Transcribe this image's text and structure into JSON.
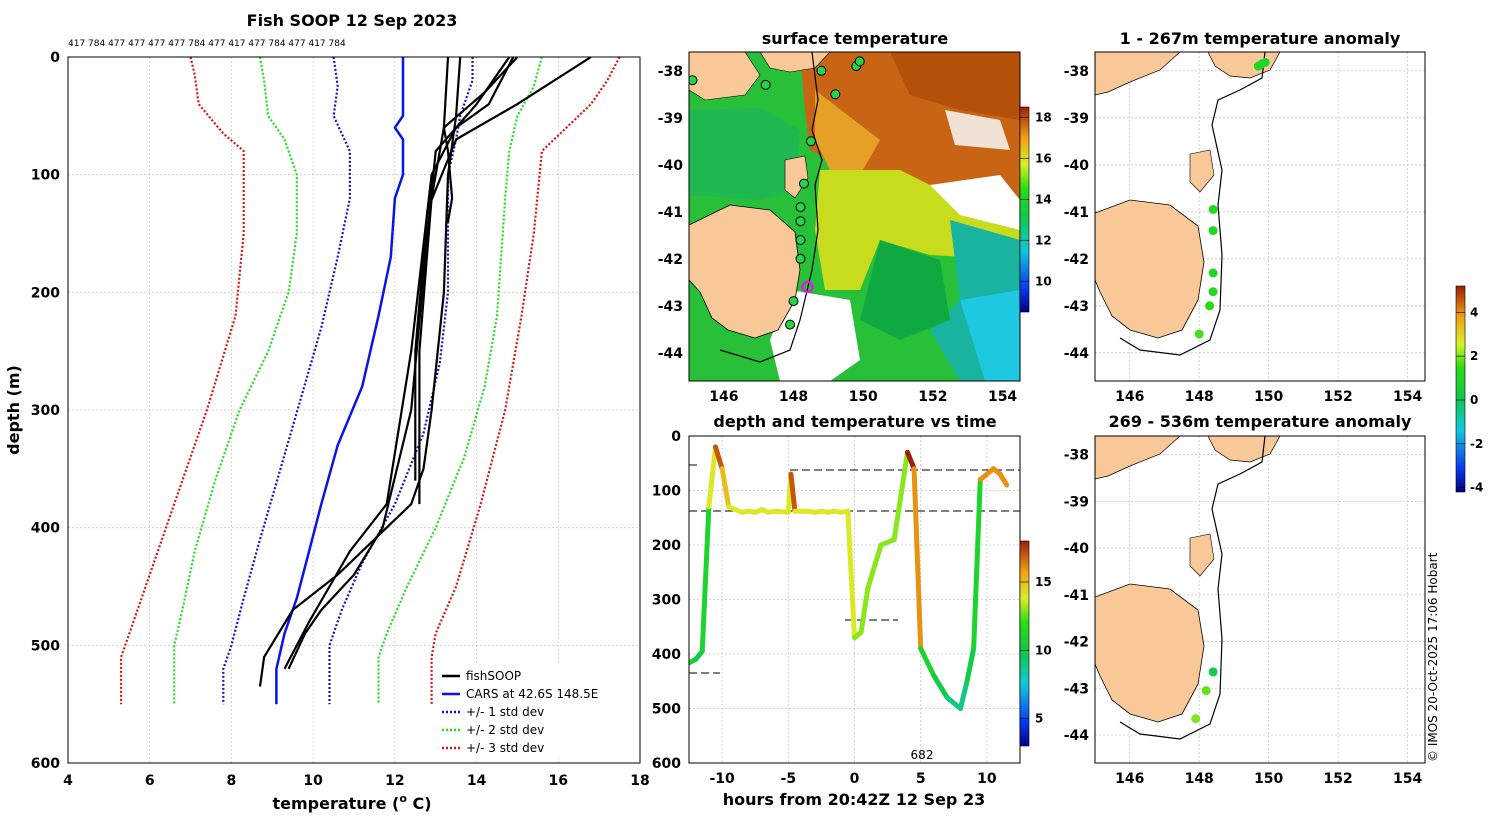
{
  "chart_data": [
    {
      "type": "line",
      "title": "Fish SOOP 12 Sep 2023",
      "xlabel": "temperature (° C)",
      "xlabel_parts": [
        "temperature (",
        "o",
        " C)"
      ],
      "ylabel": "depth (m)",
      "xlim": [
        4,
        18
      ],
      "ylim": [
        600,
        0
      ],
      "xticks": [
        "4",
        "6",
        "8",
        "10",
        "12",
        "14",
        "16",
        "18"
      ],
      "yticks": [
        "0",
        "100",
        "200",
        "300",
        "400",
        "500",
        "600"
      ],
      "top_labels": "417 784 477 477 477 477 784 477 417 477 784 477 417 784",
      "legend": [
        "fishSOOP",
        "CARS at 42.6S 148.5E",
        "+/- 1 std dev",
        "+/- 2 std dev",
        "+/- 3 std dev"
      ],
      "series": [
        {
          "name": "CARS at 42.6S 148.5E",
          "x": [
            12.2,
            12.2,
            12.2,
            12.0,
            12.2,
            12.2,
            12.0,
            11.9,
            11.6,
            11.2,
            10.6,
            10.2,
            9.9,
            9.6,
            9.3,
            9.1,
            9.1
          ],
          "y": [
            0,
            25,
            50,
            60,
            70,
            100,
            120,
            170,
            220,
            280,
            330,
            380,
            420,
            460,
            490,
            520,
            550
          ]
        },
        {
          "name": "-1 std",
          "x": [
            10.5,
            10.6,
            10.5,
            10.7,
            10.9,
            10.9,
            10.6,
            10.2,
            9.7,
            9.2,
            8.7,
            8.3,
            8.0,
            7.8,
            7.8
          ],
          "y": [
            0,
            25,
            50,
            65,
            80,
            120,
            170,
            230,
            290,
            350,
            410,
            460,
            500,
            520,
            550
          ]
        },
        {
          "name": "+1 std",
          "x": [
            13.9,
            13.9,
            13.6,
            13.5,
            13.3,
            13.3,
            13.3,
            13.1,
            12.7,
            12.0,
            11.2,
            10.7,
            10.4,
            10.4
          ],
          "y": [
            0,
            20,
            50,
            70,
            100,
            150,
            200,
            260,
            320,
            380,
            430,
            470,
            500,
            550
          ]
        },
        {
          "name": "-2 std",
          "x": [
            8.7,
            8.8,
            8.9,
            9.3,
            9.6,
            9.6,
            9.4,
            8.9,
            8.2,
            7.6,
            7.1,
            6.8,
            6.6,
            6.6
          ],
          "y": [
            0,
            20,
            50,
            70,
            100,
            150,
            200,
            250,
            300,
            360,
            420,
            470,
            500,
            550
          ]
        },
        {
          "name": "+2 std",
          "x": [
            15.6,
            15.4,
            15.0,
            14.8,
            14.7,
            14.6,
            14.5,
            14.2,
            13.7,
            13.0,
            12.3,
            11.8,
            11.6,
            11.6
          ],
          "y": [
            0,
            25,
            50,
            80,
            120,
            170,
            220,
            280,
            340,
            400,
            450,
            490,
            510,
            550
          ]
        },
        {
          "name": "-3 std",
          "x": [
            7.0,
            7.1,
            7.2,
            7.8,
            8.3,
            8.3,
            8.1,
            7.4,
            6.6,
            5.9,
            5.5,
            5.3,
            5.3
          ],
          "y": [
            0,
            15,
            40,
            65,
            80,
            150,
            220,
            300,
            380,
            450,
            490,
            510,
            550
          ]
        },
        {
          "name": "+3 std",
          "x": [
            17.5,
            17.2,
            16.8,
            16.2,
            15.6,
            15.4,
            15.1,
            14.7,
            14.1,
            13.5,
            13.0,
            12.9,
            12.9
          ],
          "y": [
            0,
            20,
            40,
            60,
            80,
            150,
            220,
            300,
            380,
            450,
            490,
            510,
            550
          ]
        },
        {
          "name": "fishSOOP 1",
          "x": [
            13.6,
            13.5,
            13.3,
            13.2,
            12.9,
            12.7,
            12.4,
            11.5,
            10.6,
            9.5,
            8.8,
            8.7
          ],
          "y": [
            0,
            50,
            100,
            200,
            300,
            350,
            380,
            410,
            440,
            470,
            510,
            535
          ]
        },
        {
          "name": "fishSOOP 2",
          "x": [
            15.0,
            14.2,
            13.2,
            12.9,
            12.6,
            12.6
          ],
          "y": [
            0,
            30,
            60,
            120,
            250,
            380
          ]
        },
        {
          "name": "fishSOOP 3",
          "x": [
            14.8,
            14.0,
            13.0,
            12.8,
            12.4,
            11.7,
            11.0,
            10.2,
            9.8,
            9.4
          ],
          "y": [
            0,
            40,
            80,
            150,
            300,
            400,
            440,
            470,
            490,
            520
          ]
        },
        {
          "name": "fishSOOP 4",
          "x": [
            16.8,
            15.0,
            13.5,
            12.8,
            12.5,
            12.5
          ],
          "y": [
            0,
            40,
            70,
            130,
            250,
            360
          ]
        },
        {
          "name": "fishSOOP 5",
          "x": [
            13.3,
            13.2,
            13.3,
            13.4,
            13.3
          ],
          "y": [
            0,
            60,
            80,
            120,
            140
          ]
        },
        {
          "name": "fishSOOP 6",
          "x": [
            14.9,
            14.3,
            13.5,
            12.9,
            12.4,
            11.8,
            10.9,
            10.4,
            9.9,
            9.3
          ],
          "y": [
            0,
            40,
            60,
            100,
            250,
            380,
            420,
            450,
            480,
            520
          ]
        }
      ]
    },
    {
      "type": "heatmap",
      "title": "surface temperature",
      "xticks": [
        "146",
        "148",
        "150",
        "152",
        "154"
      ],
      "yticks": [
        "-38",
        "-39",
        "-40",
        "-41",
        "-42",
        "-43",
        "-44"
      ],
      "xlim": [
        145,
        154.5
      ],
      "ylim": [
        -44.6,
        -37.6
      ],
      "colorbar": {
        "range": [
          8.5,
          18.5
        ],
        "ticks": [
          "18",
          "16",
          "14",
          "12",
          "10"
        ]
      },
      "profile_points": [
        [
          148.8,
          -38.0
        ],
        [
          149.2,
          -38.5
        ],
        [
          148.5,
          -39.5
        ],
        [
          148.3,
          -40.4
        ],
        [
          148.2,
          -40.9
        ],
        [
          148.2,
          -41.2
        ],
        [
          148.2,
          -41.6
        ],
        [
          148.2,
          -42.0
        ],
        [
          148.0,
          -42.9
        ],
        [
          147.9,
          -43.4
        ],
        [
          149.8,
          -37.9
        ],
        [
          149.9,
          -37.8
        ],
        [
          147.2,
          -38.3
        ],
        [
          145.1,
          -38.2
        ]
      ],
      "highlight_point": [
        148.4,
        -42.6
      ]
    },
    {
      "type": "scatter",
      "title": "depth and temperature vs time",
      "xlabel": "hours from 20:42Z 12 Sep 23",
      "xticks": [
        "-10",
        "-5",
        "0",
        "5",
        "10"
      ],
      "yticks": [
        "0",
        "100",
        "200",
        "300",
        "400",
        "500",
        "600"
      ],
      "xlim": [
        -12.5,
        12.5
      ],
      "ylim": [
        600,
        0
      ],
      "annotation": "682",
      "colorbar": {
        "range": [
          3,
          18
        ],
        "ticks": [
          "15",
          "10",
          "5"
        ]
      },
      "series": [
        {
          "name": "depth track",
          "x": [
            -12.8,
            -12.0,
            -11.5,
            -11.0,
            -10.5,
            -10.0,
            -9.5,
            -9.0,
            -8.5,
            -8.0,
            -7.5,
            -7.0,
            -6.5,
            -6.0,
            -5.0,
            -4.8,
            -4.5,
            -4.0,
            -3.5,
            -3.0,
            -2.5,
            -2.0,
            -1.5,
            -1.0,
            -0.5,
            0.0,
            0.5,
            1.0,
            2.0,
            3.0,
            4.0,
            4.5,
            5.0,
            6.0,
            7.0,
            8.0,
            8.5,
            9.0,
            9.5,
            10.0,
            10.5,
            11.0,
            11.5
          ],
          "y": [
            420,
            410,
            395,
            130,
            20,
            60,
            130,
            135,
            140,
            138,
            140,
            135,
            140,
            138,
            140,
            70,
            138,
            138,
            138,
            140,
            138,
            140,
            138,
            140,
            138,
            370,
            360,
            280,
            200,
            190,
            30,
            60,
            390,
            440,
            480,
            500,
            450,
            390,
            80,
            70,
            60,
            70,
            90
          ],
          "temp": [
            11,
            10,
            11,
            14,
            17,
            15,
            14,
            14,
            14,
            14,
            14,
            14,
            14,
            14,
            14,
            17,
            14,
            14,
            14,
            14,
            14,
            14,
            14,
            14,
            14,
            13,
            13,
            13,
            13,
            13,
            18,
            16,
            11,
            10,
            9,
            9,
            10,
            11,
            16,
            16,
            16,
            16,
            15
          ]
        }
      ]
    },
    {
      "type": "scatter",
      "title": "1 - 267m temperature anomaly",
      "xticks": [
        "146",
        "148",
        "150",
        "152",
        "154"
      ],
      "yticks": [
        "-38",
        "-39",
        "-40",
        "-41",
        "-42",
        "-43",
        "-44"
      ],
      "points": [
        [
          149.7,
          -37.9,
          1.2
        ],
        [
          149.8,
          -37.85,
          1.0
        ],
        [
          149.9,
          -37.82,
          0.8
        ],
        [
          148.4,
          -40.95,
          1.2
        ],
        [
          148.4,
          -41.4,
          1.0
        ],
        [
          148.4,
          -42.3,
          1.1
        ],
        [
          148.4,
          -42.7,
          1.0
        ],
        [
          148.3,
          -43.0,
          1.3
        ],
        [
          148.0,
          -43.6,
          1.6
        ]
      ]
    },
    {
      "type": "scatter",
      "title": "269 - 536m temperature anomaly",
      "xticks": [
        "146",
        "148",
        "150",
        "152",
        "154"
      ],
      "yticks": [
        "-38",
        "-39",
        "-40",
        "-41",
        "-42",
        "-43",
        "-44"
      ],
      "points": [
        [
          148.4,
          -42.65,
          0.2
        ],
        [
          148.2,
          -43.05,
          1.8
        ],
        [
          147.9,
          -43.65,
          2.0
        ]
      ],
      "colorbar": {
        "range": [
          -4.2,
          5.2
        ],
        "ticks": [
          "4",
          "2",
          "0",
          "-2",
          "-4"
        ]
      }
    }
  ],
  "credit": "© IMOS 20-Oct-2025 17:06 Hobart",
  "colors": {
    "observed": "#000000",
    "cars": "#0a14e6",
    "std1": "#1010d0",
    "std2": "#22dd22",
    "std3": "#e01010",
    "land": "#f8c898"
  }
}
